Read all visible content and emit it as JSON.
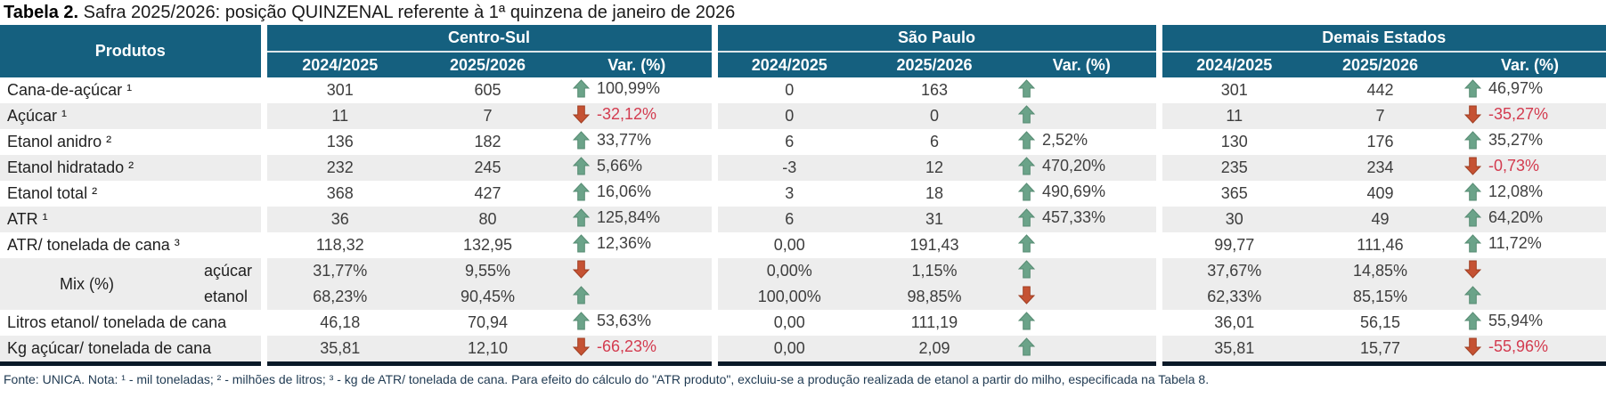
{
  "title": {
    "bold": "Tabela 2.",
    "rest": " Safra 2025/2026: posição QUINZENAL referente à 1ª quinzena de janeiro de 2026"
  },
  "colors": {
    "header_bg": "#15607F",
    "stripe": "#EDEDED",
    "up_arrow": "#6BA389",
    "up_arrow_stroke": "#568B72",
    "down_arrow": "#C55233",
    "down_arrow_stroke": "#A03E22",
    "negative_text": "#D33B4F"
  },
  "table": {
    "products_header": "Produtos",
    "groups": [
      {
        "name": "Centro-Sul",
        "cols": [
          "2024/2025",
          "2025/2026",
          "Var. (%)"
        ]
      },
      {
        "name": "São Paulo",
        "cols": [
          "2024/2025",
          "2025/2026",
          "Var. (%)"
        ]
      },
      {
        "name": "Demais Estados",
        "cols": [
          "2024/2025",
          "2025/2026",
          "Var. (%)"
        ]
      }
    ],
    "rows": [
      {
        "label": "Cana-de-açúcar ¹",
        "cells": [
          "301",
          "605",
          {
            "dir": "up",
            "pct": "100,99%"
          },
          "0",
          "163",
          {
            "dir": "up",
            "pct": ""
          },
          "301",
          "442",
          {
            "dir": "up",
            "pct": "46,97%"
          }
        ]
      },
      {
        "label": "Açúcar ¹",
        "cells": [
          "11",
          "7",
          {
            "dir": "down",
            "pct": "-32,12%"
          },
          "0",
          "0",
          {
            "dir": "up",
            "pct": ""
          },
          "11",
          "7",
          {
            "dir": "down",
            "pct": "-35,27%"
          }
        ]
      },
      {
        "label": "Etanol anidro ²",
        "cells": [
          "136",
          "182",
          {
            "dir": "up",
            "pct": "33,77%"
          },
          "6",
          "6",
          {
            "dir": "up",
            "pct": "2,52%"
          },
          "130",
          "176",
          {
            "dir": "up",
            "pct": "35,27%"
          }
        ]
      },
      {
        "label": "Etanol hidratado ²",
        "cells": [
          "232",
          "245",
          {
            "dir": "up",
            "pct": "5,66%"
          },
          "-3",
          "12",
          {
            "dir": "up",
            "pct": "470,20%"
          },
          "235",
          "234",
          {
            "dir": "down",
            "pct": "-0,73%"
          }
        ]
      },
      {
        "label": "Etanol total ²",
        "cells": [
          "368",
          "427",
          {
            "dir": "up",
            "pct": "16,06%"
          },
          "3",
          "18",
          {
            "dir": "up",
            "pct": "490,69%"
          },
          "365",
          "409",
          {
            "dir": "up",
            "pct": "12,08%"
          }
        ]
      },
      {
        "label": "ATR ¹",
        "cells": [
          "36",
          "80",
          {
            "dir": "up",
            "pct": "125,84%"
          },
          "6",
          "31",
          {
            "dir": "up",
            "pct": "457,33%"
          },
          "30",
          "49",
          {
            "dir": "up",
            "pct": "64,20%"
          }
        ]
      },
      {
        "label": "ATR/ tonelada de cana ³",
        "cells": [
          "118,32",
          "132,95",
          {
            "dir": "up",
            "pct": "12,36%"
          },
          "0,00",
          "191,43",
          {
            "dir": "up",
            "pct": ""
          },
          "99,77",
          "111,46",
          {
            "dir": "up",
            "pct": "11,72%"
          }
        ]
      },
      {
        "group_label": "Mix (%)",
        "label": "açúcar",
        "cells": [
          "31,77%",
          "9,55%",
          {
            "dir": "down",
            "pct": ""
          },
          "0,00%",
          "1,15%",
          {
            "dir": "up",
            "pct": ""
          },
          "37,67%",
          "14,85%",
          {
            "dir": "down",
            "pct": ""
          }
        ]
      },
      {
        "in_group": true,
        "label": "etanol",
        "cells": [
          "68,23%",
          "90,45%",
          {
            "dir": "up",
            "pct": ""
          },
          "100,00%",
          "98,85%",
          {
            "dir": "down",
            "pct": ""
          },
          "62,33%",
          "85,15%",
          {
            "dir": "up",
            "pct": ""
          }
        ]
      },
      {
        "label": "Litros etanol/ tonelada de cana",
        "cells": [
          "46,18",
          "70,94",
          {
            "dir": "up",
            "pct": "53,63%"
          },
          "0,00",
          "111,19",
          {
            "dir": "up",
            "pct": ""
          },
          "36,01",
          "56,15",
          {
            "dir": "up",
            "pct": "55,94%"
          }
        ]
      },
      {
        "label": "Kg açúcar/ tonelada de cana",
        "cells": [
          "35,81",
          "12,10",
          {
            "dir": "down",
            "pct": "-66,23%"
          },
          "0,00",
          "2,09",
          {
            "dir": "up",
            "pct": ""
          },
          "35,81",
          "15,77",
          {
            "dir": "down",
            "pct": "-55,96%"
          }
        ]
      }
    ]
  },
  "footnote": "Fonte: UNICA. Nota: ¹ - mil toneladas; ² - milhões de litros; ³ - kg de ATR/ tonelada de cana. Para efeito do cálculo do \"ATR produto\", excluiu-se a produção realizada de etanol a partir do milho, especificada na Tabela 8."
}
